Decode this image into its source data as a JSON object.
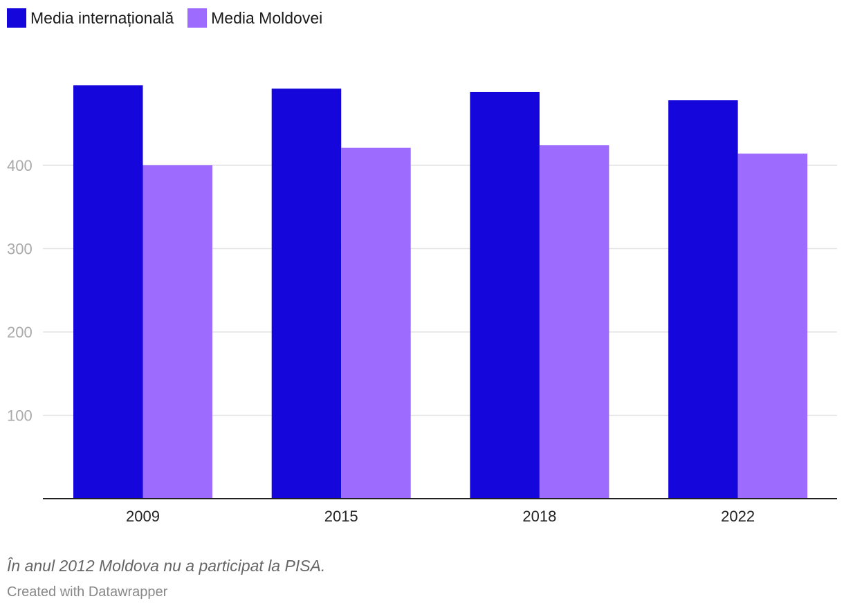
{
  "chart_data": {
    "type": "bar",
    "categories": [
      "2009",
      "2015",
      "2018",
      "2022"
    ],
    "series": [
      {
        "name": "Media internațională",
        "color": "#1506db",
        "values": [
          496,
          492,
          488,
          478
        ]
      },
      {
        "name": "Media Moldovei",
        "color": "#9e6bff",
        "values": [
          400,
          421,
          424,
          414
        ]
      }
    ],
    "ylim": [
      0,
      500
    ],
    "yticks": [
      100,
      200,
      300,
      400
    ],
    "grid": true,
    "legend_position": "top-left"
  },
  "note": "În anul 2012 Moldova nu a participat la PISA.",
  "credit": "Created with Datawrapper"
}
